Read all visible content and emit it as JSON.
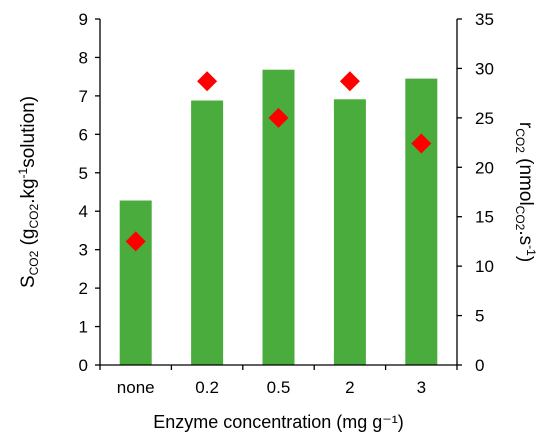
{
  "chart_data": {
    "type": "bar",
    "categories": [
      "none",
      "0.2",
      "0.5",
      "2",
      "3"
    ],
    "xlabel": "Enzyme concentration (mg g⁻¹)",
    "ylabel_left": {
      "main": "S",
      "main_sub": "CO2",
      "paren_open": " (g",
      "paren_sub": "CO2",
      "paren_mid": ".kg",
      "paren_sup": "-1",
      "paren_end": "solution)"
    },
    "ylabel_right": {
      "main": "r",
      "main_sub": "CO2",
      "paren_open": " (nmol",
      "paren_sub": "CO2",
      "paren_mid": ".s",
      "paren_sup": "-1",
      "paren_end": ")"
    },
    "y_left": {
      "min": 0,
      "max": 9,
      "step": 1
    },
    "y_right": {
      "min": 0,
      "max": 35,
      "step": 5
    },
    "grid": false,
    "series": [
      {
        "axis": "left",
        "kind": "bar",
        "color": "#4aac3c",
        "values": [
          4.28,
          6.88,
          7.68,
          6.91,
          7.45
        ]
      },
      {
        "axis": "right",
        "kind": "scatter",
        "marker": "diamond",
        "color": "#ff0000",
        "values": [
          12.5,
          28.7,
          25.0,
          28.7,
          22.4
        ]
      }
    ]
  }
}
